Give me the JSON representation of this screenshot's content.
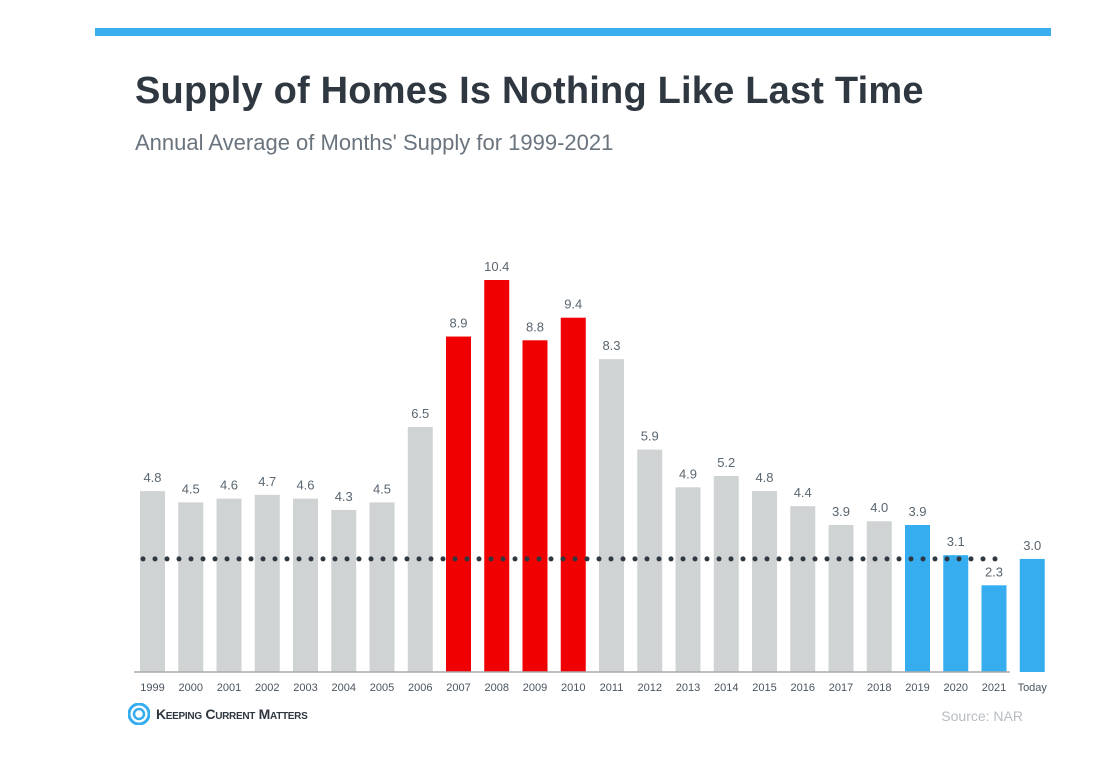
{
  "header": {
    "title": "Supply of Homes Is Nothing Like Last Time",
    "subtitle": "Annual Average of Months' Supply for 1999-2021"
  },
  "footer": {
    "logo_text": "Keeping Current Matters",
    "source": "Source: NAR"
  },
  "colors": {
    "accent_bar": "#3aaef0",
    "default": "#d0d3d4",
    "crisis": "#f00000",
    "recent": "#36adef",
    "label": "#5a6670"
  },
  "chart_data": {
    "type": "bar",
    "title": "Supply of Homes Is Nothing Like Last Time",
    "subtitle": "Annual Average of Months' Supply for 1999-2021",
    "categories": [
      "1999",
      "2000",
      "2001",
      "2002",
      "2003",
      "2004",
      "2005",
      "2006",
      "2007",
      "2008",
      "2009",
      "2010",
      "2011",
      "2012",
      "2013",
      "2014",
      "2015",
      "2016",
      "2017",
      "2018",
      "2019",
      "2020",
      "2021",
      "Today"
    ],
    "values": [
      4.8,
      4.5,
      4.6,
      4.7,
      4.6,
      4.3,
      4.5,
      6.5,
      8.9,
      10.4,
      8.8,
      9.4,
      8.3,
      5.9,
      4.9,
      5.2,
      4.8,
      4.4,
      3.9,
      4.0,
      3.9,
      3.1,
      2.3,
      3.0
    ],
    "labels": [
      "4.8",
      "4.5",
      "4.6",
      "4.7",
      "4.6",
      "4.3",
      "4.5",
      "6.5",
      "8.9",
      "10.4",
      "8.8",
      "9.4",
      "8.3",
      "5.9",
      "4.9",
      "5.2",
      "4.8",
      "4.4",
      "3.9",
      "4.0",
      "3.9",
      "3.1",
      "2.3",
      "3.0"
    ],
    "bar_groups": [
      "default",
      "default",
      "default",
      "default",
      "default",
      "default",
      "default",
      "default",
      "crisis",
      "crisis",
      "crisis",
      "crisis",
      "default",
      "default",
      "default",
      "default",
      "default",
      "default",
      "default",
      "default",
      "recent",
      "recent",
      "recent",
      "recent"
    ],
    "reference_line": {
      "value": 3.0,
      "style": "dotted"
    },
    "ylim": [
      0,
      10.4
    ],
    "grid": false,
    "xlabel": "",
    "ylabel": ""
  }
}
